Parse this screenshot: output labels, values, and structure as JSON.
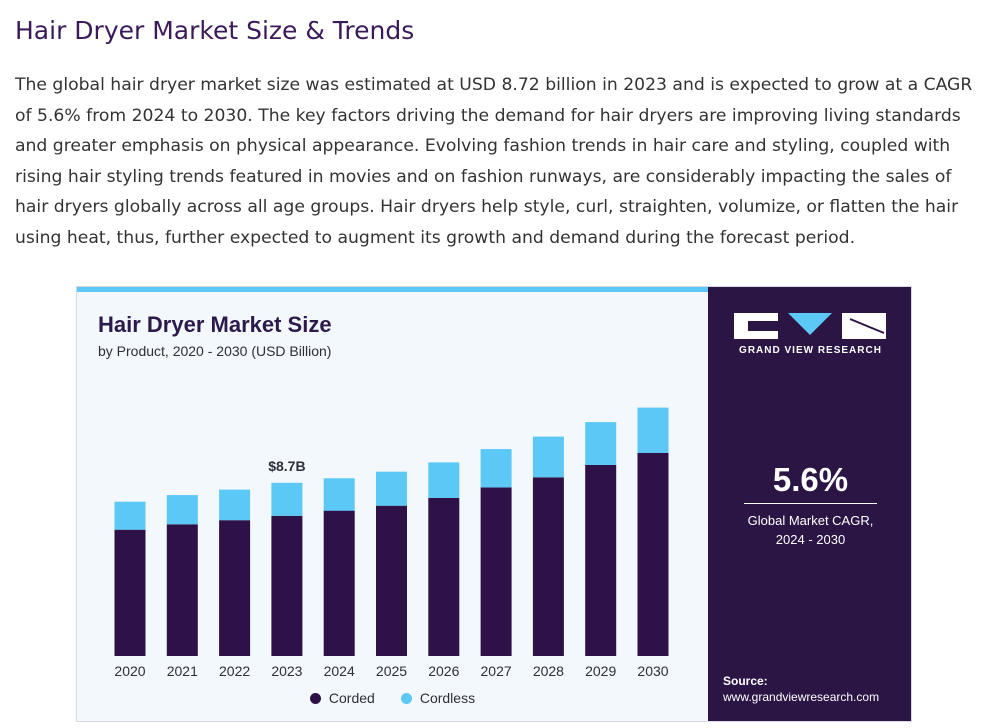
{
  "heading": "Hair Dryer Market Size & Trends",
  "intro": "The global hair dryer market size was estimated at USD 8.72 billion in 2023 and is expected to grow at a CAGR of 5.6% from 2024 to 2030. The key factors driving the demand for hair dryers are improving living standards and greater emphasis on physical appearance. Evolving fashion trends in hair care and styling, coupled with rising hair styling trends featured in movies and on fashion runways, are considerably impacting the sales of hair dryers globally across all age groups. Hair dryers help style, curl, straighten, volumize, or flatten the hair using heat, thus, further expected to augment its growth and demand during the forecast period.",
  "chart_data": {
    "type": "bar",
    "stacked": true,
    "title": "Hair Dryer Market Size",
    "subtitle": "by Product, 2020 - 2030 (USD Billion)",
    "xlabel": "",
    "ylabel": "",
    "ylim": [
      0,
      14.2
    ],
    "grid": false,
    "legend_position": "bottom",
    "categories": [
      "2020",
      "2021",
      "2022",
      "2023",
      "2024",
      "2025",
      "2026",
      "2027",
      "2028",
      "2029",
      "2030"
    ],
    "series": [
      {
        "name": "Corded",
        "color": "#2e1247",
        "values": [
          6.36,
          6.63,
          6.84,
          7.06,
          7.32,
          7.57,
          7.96,
          8.49,
          9.0,
          9.62,
          10.23
        ]
      },
      {
        "name": "Cordless",
        "color": "#5bc8f5",
        "values": [
          1.41,
          1.47,
          1.54,
          1.66,
          1.63,
          1.71,
          1.79,
          1.93,
          2.05,
          2.16,
          2.28
        ]
      }
    ],
    "annotations": [
      {
        "category": "2023",
        "text": "$8.7B"
      }
    ]
  },
  "panel": {
    "brand": "GRAND VIEW RESEARCH",
    "cagr_value": "5.6%",
    "cagr_label_line1": "Global Market CAGR,",
    "cagr_label_line2": "2024 - 2030",
    "source_label": "Source:",
    "source_url": "www.grandviewresearch.com"
  }
}
